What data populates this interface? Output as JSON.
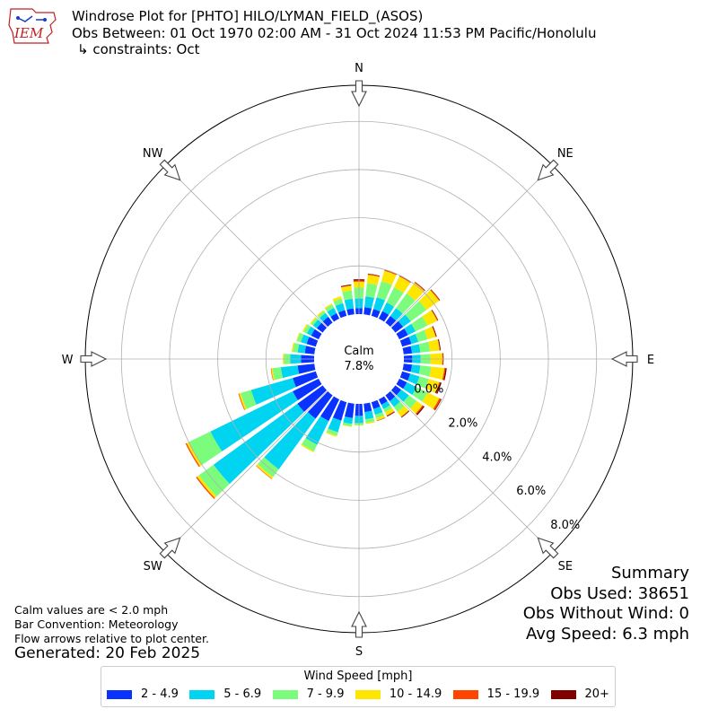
{
  "header": {
    "title": "Windrose Plot for [PHTO] HILO/LYMAN_FIELD_(ASOS)",
    "obs_between": "Obs Between: 01 Oct 1970 02:00 AM - 31 Oct 2024 11:53 PM Pacific/Honolulu",
    "constraints": "↳ constraints: Oct",
    "logo_text": "IEM"
  },
  "notes": {
    "calm_note": "Calm values are < 2.0 mph",
    "bar_convention": "Bar Convention: Meteorology",
    "flow_note": "Flow arrows relative to plot center.",
    "generated": "Generated: 20 Feb 2025"
  },
  "summary": {
    "title": "Summary",
    "obs_used": "Obs Used: 38651",
    "obs_without_wind": "Obs Without Wind: 0",
    "avg_speed": "Avg Speed: 6.3 mph"
  },
  "legend": {
    "title": "Wind Speed [mph]",
    "items": [
      {
        "label": "2 - 4.9",
        "color": "#0a32ff"
      },
      {
        "label": "5 - 6.9",
        "color": "#00d4f0"
      },
      {
        "label": "7 - 9.9",
        "color": "#7cfc7c"
      },
      {
        "label": "10 - 14.9",
        "color": "#ffe600"
      },
      {
        "label": "15 - 19.9",
        "color": "#ff4500"
      },
      {
        "label": "20+",
        "color": "#800000"
      }
    ]
  },
  "chart_data": {
    "type": "windrose",
    "calm_label": "Calm",
    "calm_value": "7.8%",
    "r_ticks": [
      "0.0%",
      "2.0%",
      "4.0%",
      "6.0%",
      "8.0%"
    ],
    "r_tick_values": [
      0,
      2,
      4,
      6,
      8
    ],
    "r_max": 9.5,
    "compass_labels": [
      "N",
      "NE",
      "E",
      "SE",
      "S",
      "SW",
      "W",
      "NW"
    ],
    "bin_width_deg": 10,
    "directions_deg": [
      0,
      10,
      20,
      30,
      40,
      50,
      60,
      70,
      80,
      90,
      100,
      110,
      120,
      130,
      140,
      150,
      160,
      170,
      180,
      190,
      200,
      210,
      220,
      230,
      240,
      250,
      260,
      270,
      280,
      290,
      300,
      310,
      320,
      330,
      340,
      350
    ],
    "speed_bins": [
      "2 - 4.9",
      "5 - 6.9",
      "7 - 9.9",
      "10 - 14.9",
      "15 - 19.9",
      "20+"
    ],
    "cumulative_percent": [
      [
        0.25,
        0.65,
        1.1,
        1.35,
        1.4,
        1.45
      ],
      [
        0.3,
        0.75,
        1.3,
        1.65,
        1.68,
        1.7
      ],
      [
        0.3,
        0.8,
        1.5,
        1.95,
        1.98,
        2.0
      ],
      [
        0.35,
        0.75,
        1.45,
        1.95,
        1.98,
        2.0
      ],
      [
        0.35,
        0.75,
        1.5,
        2.05,
        2.08,
        2.1
      ],
      [
        0.4,
        0.8,
        1.6,
        2.25,
        2.28,
        2.3
      ],
      [
        0.4,
        0.75,
        1.3,
        1.75,
        1.78,
        1.8
      ],
      [
        0.4,
        0.7,
        1.1,
        1.45,
        1.47,
        1.5
      ],
      [
        0.35,
        0.7,
        1.1,
        1.5,
        1.52,
        1.55
      ],
      [
        0.35,
        0.7,
        1.1,
        1.6,
        1.63,
        1.65
      ],
      [
        0.35,
        0.7,
        1.15,
        1.7,
        1.75,
        1.8
      ],
      [
        0.35,
        0.75,
        1.15,
        1.6,
        1.65,
        1.7
      ],
      [
        0.35,
        0.8,
        1.3,
        1.85,
        1.92,
        1.95
      ],
      [
        0.3,
        0.7,
        1.1,
        1.4,
        1.45,
        1.5
      ],
      [
        0.3,
        0.6,
        0.85,
        1.1,
        1.12,
        1.15
      ],
      [
        0.25,
        0.45,
        0.6,
        0.75,
        0.77,
        0.8
      ],
      [
        0.3,
        0.55,
        0.7,
        0.8,
        0.81,
        0.82
      ],
      [
        0.35,
        0.65,
        0.8,
        0.85,
        0.85,
        0.85
      ],
      [
        0.5,
        0.8,
        0.88,
        0.9,
        0.9,
        0.9
      ],
      [
        0.6,
        0.85,
        0.95,
        0.97,
        0.97,
        0.97
      ],
      [
        0.8,
        1.3,
        1.45,
        1.5,
        1.5,
        1.5
      ],
      [
        1.0,
        2.1,
        2.4,
        2.45,
        2.45,
        2.45
      ],
      [
        1.2,
        3.8,
        4.2,
        4.28,
        4.3,
        4.3
      ],
      [
        1.3,
        5.6,
        6.35,
        6.45,
        6.5,
        6.5
      ],
      [
        1.2,
        5.0,
        6.0,
        6.1,
        6.15,
        6.15
      ],
      [
        1.0,
        2.8,
        3.25,
        3.32,
        3.35,
        3.35
      ],
      [
        0.7,
        1.4,
        1.75,
        1.8,
        1.82,
        1.82
      ],
      [
        0.55,
        1.0,
        1.25,
        1.3,
        1.3,
        1.3
      ],
      [
        0.4,
        0.7,
        0.9,
        0.95,
        0.95,
        0.95
      ],
      [
        0.4,
        0.65,
        0.82,
        0.85,
        0.85,
        0.85
      ],
      [
        0.35,
        0.55,
        0.7,
        0.75,
        0.75,
        0.75
      ],
      [
        0.3,
        0.5,
        0.6,
        0.65,
        0.65,
        0.65
      ],
      [
        0.3,
        0.5,
        0.6,
        0.65,
        0.65,
        0.65
      ],
      [
        0.25,
        0.5,
        0.65,
        0.7,
        0.7,
        0.7
      ],
      [
        0.25,
        0.55,
        0.75,
        0.85,
        0.85,
        0.85
      ],
      [
        0.25,
        0.65,
        1.0,
        1.2,
        1.22,
        1.25
      ]
    ]
  }
}
